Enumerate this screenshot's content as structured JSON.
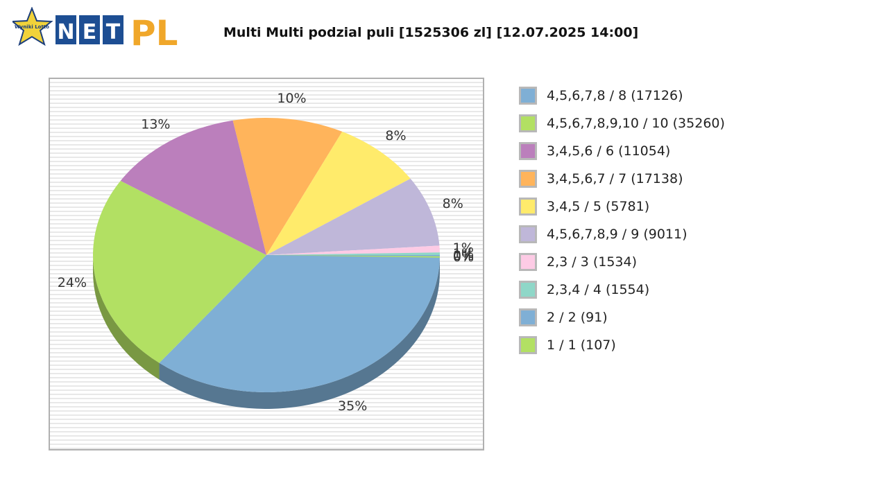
{
  "header": {
    "logo_text": "NET PL",
    "logo_badge": "Wyniki Lotto",
    "title": "Multi Multi podzial puli [1525306 zl] [12.07.2025 14:00]"
  },
  "chart_data": {
    "type": "pie",
    "title": "Multi Multi podzial puli [1525306 zl] [12.07.2025 14:00]",
    "legend_position": "right",
    "slices": [
      {
        "name": "4,5,6,7,8 / 8 (17126)",
        "value": 17126,
        "label": "35%",
        "color": "#7fafd5"
      },
      {
        "name": "4,5,6,7,8,9,10 / 10 (35260)",
        "value": 35260,
        "label": "24%",
        "color": "#b2e063"
      },
      {
        "name": "3,4,5,6 / 6 (11054)",
        "value": 11054,
        "label": "13%",
        "color": "#bb7fbc"
      },
      {
        "name": "3,4,5,6,7 / 7 (17138)",
        "value": 17138,
        "label": "10%",
        "color": "#ffb45b"
      },
      {
        "name": "3,4,5 / 5 (5781)",
        "value": 5781,
        "label": "8%",
        "color": "#ffeb6b"
      },
      {
        "name": "4,5,6,7,8,9 / 9 (9011)",
        "value": 9011,
        "label": "8%",
        "color": "#bfb7d9"
      },
      {
        "name": "2,3 / 3 (1534)",
        "value": 1534,
        "label": "1%",
        "color": "#fdcbe5"
      },
      {
        "name": "2,3,4 / 4 (1554)",
        "value": 1554,
        "label": "1%",
        "color": "#8fd7c8"
      },
      {
        "name": "2 / 2 (91)",
        "value": 91,
        "label": "0%",
        "color": "#7fafd5"
      },
      {
        "name": "1 / 1 (107)",
        "value": 107,
        "label": "0%",
        "color": "#b2e063"
      }
    ]
  }
}
